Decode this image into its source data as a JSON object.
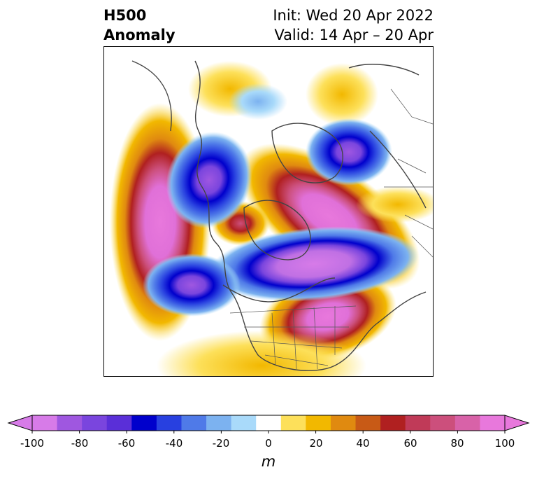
{
  "title": {
    "left_line1": "H500",
    "left_line2": "Anomaly",
    "right_line1": "Init: Wed 20 Apr 2022",
    "right_line2": "Valid: 14 Apr – 20 Apr"
  },
  "colorbar": {
    "unit": "m",
    "ticks": [
      "-100",
      "-80",
      "-60",
      "-40",
      "-20",
      "0",
      "20",
      "40",
      "60",
      "80",
      "100"
    ],
    "colors": [
      "#d77be8",
      "#9f57e0",
      "#7a45de",
      "#5a2fd8",
      "#0000cc",
      "#2840e0",
      "#4f7ae8",
      "#7cb2f0",
      "#a9dafa",
      "#ffffff",
      "#fde05a",
      "#f2b800",
      "#e08a10",
      "#c85a16",
      "#b02020",
      "#c03a58",
      "#cc4f7c",
      "#d862a8",
      "#e878dc"
    ]
  }
}
